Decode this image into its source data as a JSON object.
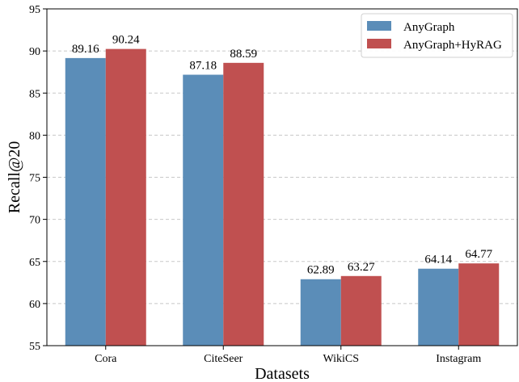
{
  "chart_data": {
    "type": "bar",
    "categories": [
      "Cora",
      "CiteSeer",
      "WikiCS",
      "Instagram"
    ],
    "series": [
      {
        "name": "AnyGraph",
        "values": [
          89.16,
          87.18,
          62.89,
          64.14
        ],
        "color": "#5b8db8"
      },
      {
        "name": "AnyGraph+HyRAG",
        "values": [
          90.24,
          88.59,
          63.27,
          64.77
        ],
        "color": "#c05050"
      }
    ],
    "data_labels": [
      [
        "89.16",
        "87.18",
        "62.89",
        "64.14"
      ],
      [
        "90.24",
        "88.59",
        "63.27",
        "64.77"
      ]
    ],
    "xlabel": "Datasets",
    "ylabel": "Recall@20",
    "ylim": [
      55,
      95
    ],
    "yticks": [
      55,
      60,
      65,
      70,
      75,
      80,
      85,
      90,
      95
    ],
    "grid": "horizontal dashed",
    "legend_position": "top-right"
  }
}
